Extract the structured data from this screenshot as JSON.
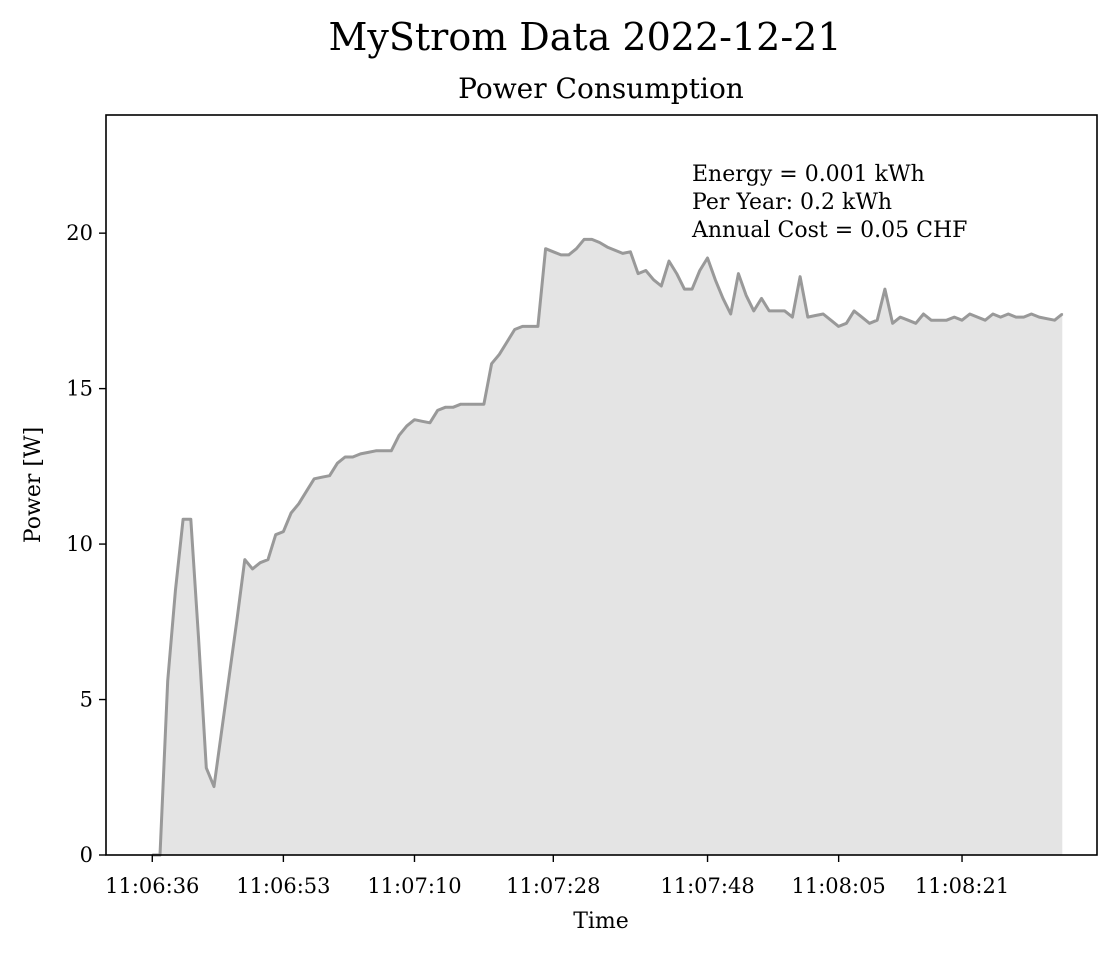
{
  "chart_data": {
    "type": "area",
    "suptitle": "MyStrom Data 2022-12-21",
    "title": "Power Consumption",
    "xlabel": "Time",
    "ylabel": "Power [W]",
    "ylim": [
      0,
      23.8
    ],
    "xlim_seconds_after_11_06_30": [
      0,
      128.5
    ],
    "x_ticks": [
      {
        "label": "11:06:36",
        "t": 6
      },
      {
        "label": "11:06:53",
        "t": 23
      },
      {
        "label": "11:07:10",
        "t": 40
      },
      {
        "label": "11:07:28",
        "t": 58
      },
      {
        "label": "11:07:48",
        "t": 78
      },
      {
        "label": "11:08:05",
        "t": 95
      },
      {
        "label": "11:08:21",
        "t": 111
      }
    ],
    "y_ticks": [
      {
        "label": "0",
        "v": 0
      },
      {
        "label": "5",
        "v": 5
      },
      {
        "label": "10",
        "v": 10
      },
      {
        "label": "15",
        "v": 15
      },
      {
        "label": "20",
        "v": 20
      }
    ],
    "annotation": [
      "Energy = 0.001 kWh",
      "Per Year: 0.2 kWh",
      "Annual Cost = 0.05 CHF"
    ],
    "grid": false,
    "colors": {
      "line": "#999999",
      "fill": "#e4e4e4",
      "axes": "#000000"
    },
    "series": [
      {
        "values_t_w": [
          [
            6,
            0
          ],
          [
            7,
            0
          ],
          [
            8,
            5.6
          ],
          [
            9,
            8.5
          ],
          [
            10,
            10.8
          ],
          [
            11,
            10.8
          ],
          [
            12,
            7.0
          ],
          [
            13,
            2.8
          ],
          [
            14,
            2.2
          ],
          [
            15,
            4.0
          ],
          [
            16,
            5.8
          ],
          [
            17,
            7.6
          ],
          [
            18,
            9.5
          ],
          [
            19,
            9.2
          ],
          [
            20,
            9.4
          ],
          [
            21,
            9.5
          ],
          [
            22,
            10.3
          ],
          [
            23,
            10.4
          ],
          [
            24,
            11.0
          ],
          [
            25,
            11.3
          ],
          [
            26,
            11.7
          ],
          [
            27,
            12.1
          ],
          [
            28,
            12.15
          ],
          [
            29,
            12.2
          ],
          [
            30,
            12.6
          ],
          [
            31,
            12.8
          ],
          [
            32,
            12.8
          ],
          [
            33,
            12.9
          ],
          [
            34,
            12.95
          ],
          [
            35,
            13.0
          ],
          [
            36,
            13.0
          ],
          [
            37,
            13.0
          ],
          [
            38,
            13.5
          ],
          [
            39,
            13.8
          ],
          [
            40,
            14.0
          ],
          [
            41,
            13.95
          ],
          [
            42,
            13.9
          ],
          [
            43,
            14.3
          ],
          [
            44,
            14.4
          ],
          [
            45,
            14.4
          ],
          [
            46,
            14.5
          ],
          [
            47,
            14.5
          ],
          [
            48,
            14.5
          ],
          [
            49,
            14.5
          ],
          [
            50,
            15.8
          ],
          [
            51,
            16.1
          ],
          [
            52,
            16.5
          ],
          [
            53,
            16.9
          ],
          [
            54,
            17.0
          ],
          [
            55,
            17.0
          ],
          [
            56,
            17.0
          ],
          [
            57,
            19.5
          ],
          [
            58,
            19.4
          ],
          [
            59,
            19.3
          ],
          [
            60,
            19.3
          ],
          [
            61,
            19.5
          ],
          [
            62,
            19.8
          ],
          [
            63,
            19.8
          ],
          [
            64,
            19.7
          ],
          [
            65,
            19.55
          ],
          [
            66,
            19.45
          ],
          [
            67,
            19.35
          ],
          [
            68,
            19.4
          ],
          [
            69,
            18.7
          ],
          [
            70,
            18.8
          ],
          [
            71,
            18.5
          ],
          [
            72,
            18.3
          ],
          [
            73,
            19.1
          ],
          [
            74,
            18.7
          ],
          [
            75,
            18.2
          ],
          [
            76,
            18.2
          ],
          [
            77,
            18.8
          ],
          [
            78,
            19.2
          ],
          [
            79,
            18.5
          ],
          [
            80,
            17.9
          ],
          [
            81,
            17.4
          ],
          [
            82,
            18.7
          ],
          [
            83,
            18.0
          ],
          [
            84,
            17.5
          ],
          [
            85,
            17.9
          ],
          [
            86,
            17.5
          ],
          [
            87,
            17.5
          ],
          [
            88,
            17.5
          ],
          [
            89,
            17.3
          ],
          [
            90,
            18.6
          ],
          [
            91,
            17.3
          ],
          [
            92,
            17.35
          ],
          [
            93,
            17.4
          ],
          [
            94,
            17.2
          ],
          [
            95,
            17.0
          ],
          [
            96,
            17.1
          ],
          [
            97,
            17.5
          ],
          [
            98,
            17.3
          ],
          [
            99,
            17.1
          ],
          [
            100,
            17.2
          ],
          [
            101,
            18.2
          ],
          [
            102,
            17.1
          ],
          [
            103,
            17.3
          ],
          [
            104,
            17.2
          ],
          [
            105,
            17.1
          ],
          [
            106,
            17.4
          ],
          [
            107,
            17.2
          ],
          [
            108,
            17.2
          ],
          [
            109,
            17.2
          ],
          [
            110,
            17.3
          ],
          [
            111,
            17.2
          ],
          [
            112,
            17.4
          ],
          [
            113,
            17.3
          ],
          [
            114,
            17.2
          ],
          [
            115,
            17.4
          ],
          [
            116,
            17.3
          ],
          [
            117,
            17.4
          ],
          [
            118,
            17.3
          ],
          [
            119,
            17.3
          ],
          [
            120,
            17.4
          ],
          [
            121,
            17.3
          ],
          [
            122,
            17.25
          ],
          [
            123,
            17.2
          ],
          [
            124,
            17.4
          ]
        ]
      }
    ]
  }
}
